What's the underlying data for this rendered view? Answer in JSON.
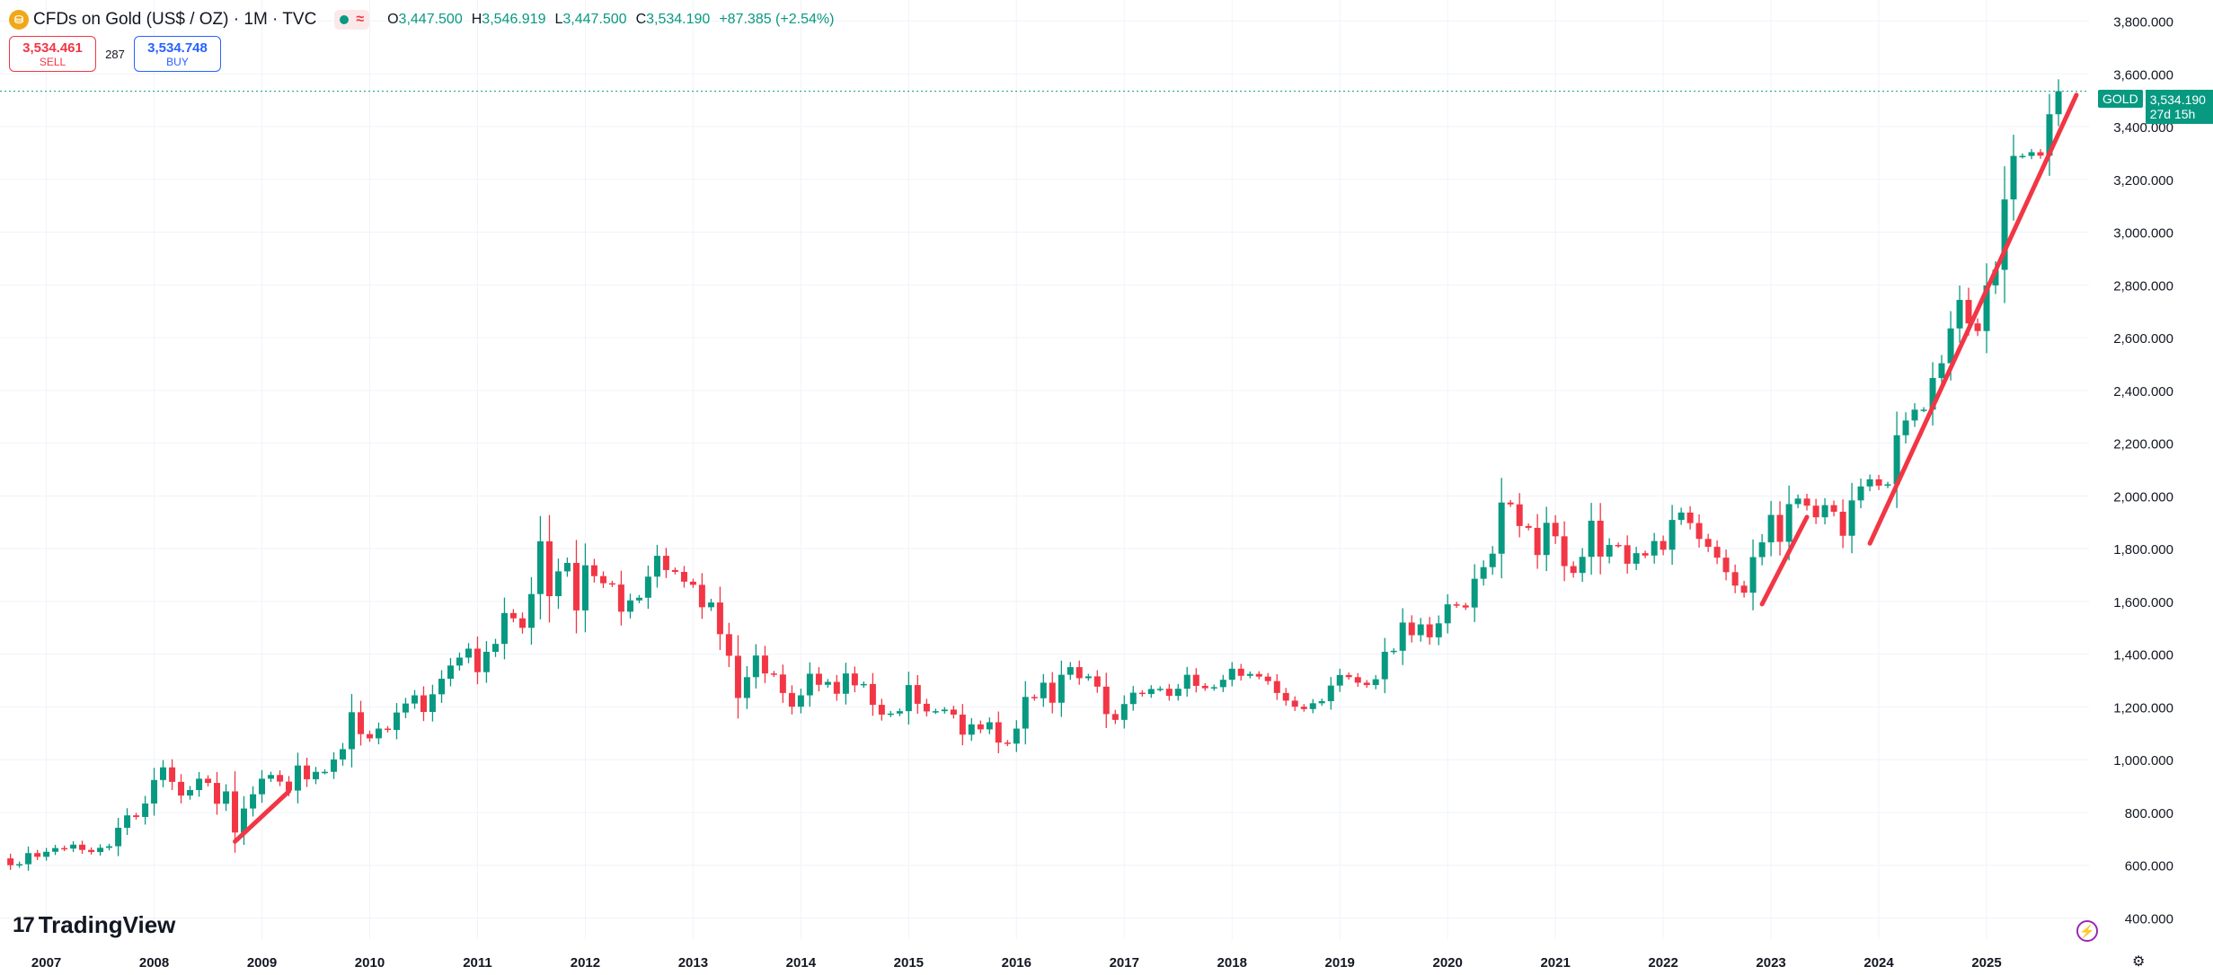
{
  "header": {
    "symbol_icon": "gold-coin-icon",
    "title": "CFDs on Gold (US$ / OZ) · 1M · TVC",
    "status_icon": "market-status-wave-icon",
    "open_key": "O",
    "open": "3,447.500",
    "high_key": "H",
    "high": "3,546.919",
    "low_key": "L",
    "low": "3,447.500",
    "close_key": "C",
    "close": "3,534.190",
    "change": "+87.385 (+2.54%)"
  },
  "trade": {
    "sell_price": "3,534.461",
    "sell_label": "SELL",
    "spread": "287",
    "buy_price": "3,534.748",
    "buy_label": "BUY"
  },
  "price_tag": {
    "symbol": "GOLD",
    "price": "3,534.190",
    "countdown": "27d 15h"
  },
  "branding": {
    "logo_text": "TradingView",
    "logo_mark": "17"
  },
  "colors": {
    "up": "#089981",
    "down": "#f23645",
    "trendline": "#f23645",
    "grid": "#f0f3fa",
    "axis_text": "#131722"
  },
  "chart_data": {
    "type": "candlestick",
    "title": "CFDs on Gold (US$ / OZ)",
    "interval": "1M",
    "source": "TVC",
    "x_ticks": [
      "2007",
      "2008",
      "2009",
      "2010",
      "2011",
      "2012",
      "2013",
      "2014",
      "2015",
      "2016",
      "2017",
      "2018",
      "2019",
      "2020",
      "2021",
      "2022",
      "2023",
      "2024",
      "2025"
    ],
    "y_ticks": [
      "400.000",
      "600.000",
      "800.000",
      "1,000.000",
      "1,200.000",
      "1,400.000",
      "1,600.000",
      "1,800.000",
      "2,000.000",
      "2,200.000",
      "2,400.000",
      "2,600.000",
      "2,800.000",
      "3,000.000",
      "3,200.000",
      "3,400.000",
      "3,600.000",
      "3,800.000"
    ],
    "ylim": [
      320,
      3880
    ],
    "xlim": [
      2006.57,
      2025.95
    ],
    "last_price": 3534.19,
    "closes": [
      [
        2006.583,
        626
      ],
      [
        2006.667,
        600
      ],
      [
        2006.75,
        604
      ],
      [
        2006.833,
        646
      ],
      [
        2006.917,
        632
      ],
      [
        2007.0,
        651
      ],
      [
        2007.083,
        665
      ],
      [
        2007.167,
        663
      ],
      [
        2007.25,
        678
      ],
      [
        2007.333,
        658
      ],
      [
        2007.417,
        650
      ],
      [
        2007.5,
        666
      ],
      [
        2007.583,
        672
      ],
      [
        2007.667,
        742
      ],
      [
        2007.75,
        789
      ],
      [
        2007.833,
        783
      ],
      [
        2007.917,
        834
      ],
      [
        2008.0,
        923
      ],
      [
        2008.083,
        971
      ],
      [
        2008.167,
        916
      ],
      [
        2008.25,
        864
      ],
      [
        2008.333,
        885
      ],
      [
        2008.417,
        928
      ],
      [
        2008.5,
        912
      ],
      [
        2008.583,
        833
      ],
      [
        2008.667,
        880
      ],
      [
        2008.75,
        724
      ],
      [
        2008.833,
        815
      ],
      [
        2008.917,
        869
      ],
      [
        2009.0,
        928
      ],
      [
        2009.083,
        942
      ],
      [
        2009.167,
        917
      ],
      [
        2009.25,
        883
      ],
      [
        2009.333,
        978
      ],
      [
        2009.417,
        926
      ],
      [
        2009.5,
        954
      ],
      [
        2009.583,
        954
      ],
      [
        2009.667,
        1001
      ],
      [
        2009.75,
        1040
      ],
      [
        2009.833,
        1180
      ],
      [
        2009.917,
        1097
      ],
      [
        2010.0,
        1081
      ],
      [
        2010.083,
        1118
      ],
      [
        2010.167,
        1113
      ],
      [
        2010.25,
        1179
      ],
      [
        2010.333,
        1213
      ],
      [
        2010.417,
        1244
      ],
      [
        2010.5,
        1181
      ],
      [
        2010.583,
        1248
      ],
      [
        2010.667,
        1307
      ],
      [
        2010.75,
        1357
      ],
      [
        2010.833,
        1387
      ],
      [
        2010.917,
        1421
      ],
      [
        2011.0,
        1332
      ],
      [
        2011.083,
        1409
      ],
      [
        2011.167,
        1439
      ],
      [
        2011.25,
        1556
      ],
      [
        2011.333,
        1536
      ],
      [
        2011.417,
        1500
      ],
      [
        2011.5,
        1628
      ],
      [
        2011.583,
        1828
      ],
      [
        2011.667,
        1620
      ],
      [
        2011.75,
        1714
      ],
      [
        2011.833,
        1746
      ],
      [
        2011.917,
        1566
      ],
      [
        2012.0,
        1737
      ],
      [
        2012.083,
        1696
      ],
      [
        2012.167,
        1669
      ],
      [
        2012.25,
        1664
      ],
      [
        2012.333,
        1561
      ],
      [
        2012.417,
        1604
      ],
      [
        2012.5,
        1614
      ],
      [
        2012.583,
        1694
      ],
      [
        2012.667,
        1773
      ],
      [
        2012.75,
        1719
      ],
      [
        2012.833,
        1712
      ],
      [
        2012.917,
        1675
      ],
      [
        2013.0,
        1663
      ],
      [
        2013.083,
        1578
      ],
      [
        2013.167,
        1596
      ],
      [
        2013.25,
        1476
      ],
      [
        2013.333,
        1394
      ],
      [
        2013.417,
        1234
      ],
      [
        2013.5,
        1313
      ],
      [
        2013.583,
        1395
      ],
      [
        2013.667,
        1327
      ],
      [
        2013.75,
        1323
      ],
      [
        2013.833,
        1253
      ],
      [
        2013.917,
        1201
      ],
      [
        2014.0,
        1244
      ],
      [
        2014.083,
        1326
      ],
      [
        2014.167,
        1284
      ],
      [
        2014.25,
        1295
      ],
      [
        2014.333,
        1250
      ],
      [
        2014.417,
        1327
      ],
      [
        2014.5,
        1282
      ],
      [
        2014.583,
        1287
      ],
      [
        2014.667,
        1208
      ],
      [
        2014.75,
        1171
      ],
      [
        2014.833,
        1175
      ],
      [
        2014.917,
        1184
      ],
      [
        2015.0,
        1283
      ],
      [
        2015.083,
        1212
      ],
      [
        2015.167,
        1183
      ],
      [
        2015.25,
        1184
      ],
      [
        2015.333,
        1190
      ],
      [
        2015.417,
        1171
      ],
      [
        2015.5,
        1095
      ],
      [
        2015.583,
        1134
      ],
      [
        2015.667,
        1115
      ],
      [
        2015.75,
        1142
      ],
      [
        2015.833,
        1065
      ],
      [
        2015.917,
        1061
      ],
      [
        2016.0,
        1118
      ],
      [
        2016.083,
        1238
      ],
      [
        2016.167,
        1233
      ],
      [
        2016.25,
        1292
      ],
      [
        2016.333,
        1216
      ],
      [
        2016.417,
        1322
      ],
      [
        2016.5,
        1351
      ],
      [
        2016.583,
        1309
      ],
      [
        2016.667,
        1316
      ],
      [
        2016.75,
        1277
      ],
      [
        2016.833,
        1173
      ],
      [
        2016.917,
        1151
      ],
      [
        2017.0,
        1211
      ],
      [
        2017.083,
        1254
      ],
      [
        2017.167,
        1249
      ],
      [
        2017.25,
        1268
      ],
      [
        2017.333,
        1269
      ],
      [
        2017.417,
        1242
      ],
      [
        2017.5,
        1269
      ],
      [
        2017.583,
        1322
      ],
      [
        2017.667,
        1280
      ],
      [
        2017.75,
        1271
      ],
      [
        2017.833,
        1275
      ],
      [
        2017.917,
        1303
      ],
      [
        2018.0,
        1345
      ],
      [
        2018.083,
        1318
      ],
      [
        2018.167,
        1325
      ],
      [
        2018.25,
        1315
      ],
      [
        2018.333,
        1298
      ],
      [
        2018.417,
        1253
      ],
      [
        2018.5,
        1224
      ],
      [
        2018.583,
        1201
      ],
      [
        2018.667,
        1192
      ],
      [
        2018.75,
        1214
      ],
      [
        2018.833,
        1222
      ],
      [
        2018.917,
        1281
      ],
      [
        2019.0,
        1321
      ],
      [
        2019.083,
        1313
      ],
      [
        2019.167,
        1292
      ],
      [
        2019.25,
        1283
      ],
      [
        2019.333,
        1305
      ],
      [
        2019.417,
        1409
      ],
      [
        2019.5,
        1413
      ],
      [
        2019.583,
        1520
      ],
      [
        2019.667,
        1472
      ],
      [
        2019.75,
        1513
      ],
      [
        2019.833,
        1464
      ],
      [
        2019.917,
        1517
      ],
      [
        2020.0,
        1589
      ],
      [
        2020.083,
        1585
      ],
      [
        2020.167,
        1577
      ],
      [
        2020.25,
        1686
      ],
      [
        2020.333,
        1730
      ],
      [
        2020.417,
        1781
      ],
      [
        2020.5,
        1975
      ],
      [
        2020.583,
        1968
      ],
      [
        2020.667,
        1886
      ],
      [
        2020.75,
        1879
      ],
      [
        2020.833,
        1776
      ],
      [
        2020.917,
        1898
      ],
      [
        2021.0,
        1847
      ],
      [
        2021.083,
        1734
      ],
      [
        2021.167,
        1708
      ],
      [
        2021.25,
        1769
      ],
      [
        2021.333,
        1906
      ],
      [
        2021.417,
        1770
      ],
      [
        2021.5,
        1814
      ],
      [
        2021.583,
        1813
      ],
      [
        2021.667,
        1743
      ],
      [
        2021.75,
        1783
      ],
      [
        2021.833,
        1774
      ],
      [
        2021.917,
        1829
      ],
      [
        2022.0,
        1796
      ],
      [
        2022.083,
        1909
      ],
      [
        2022.167,
        1937
      ],
      [
        2022.25,
        1897
      ],
      [
        2022.333,
        1837
      ],
      [
        2022.417,
        1807
      ],
      [
        2022.5,
        1766
      ],
      [
        2022.583,
        1711
      ],
      [
        2022.667,
        1660
      ],
      [
        2022.75,
        1633
      ],
      [
        2022.833,
        1768
      ],
      [
        2022.917,
        1824
      ],
      [
        2023.0,
        1928
      ],
      [
        2023.083,
        1826
      ],
      [
        2023.167,
        1969
      ],
      [
        2023.25,
        1990
      ],
      [
        2023.333,
        1963
      ],
      [
        2023.417,
        1919
      ],
      [
        2023.5,
        1965
      ],
      [
        2023.583,
        1940
      ],
      [
        2023.667,
        1849
      ],
      [
        2023.75,
        1983
      ],
      [
        2023.833,
        2036
      ],
      [
        2023.917,
        2063
      ],
      [
        2024.0,
        2039
      ],
      [
        2024.083,
        2044
      ],
      [
        2024.167,
        2230
      ],
      [
        2024.25,
        2286
      ],
      [
        2024.333,
        2327
      ],
      [
        2024.417,
        2327
      ],
      [
        2024.5,
        2447
      ],
      [
        2024.583,
        2503
      ],
      [
        2024.667,
        2635
      ],
      [
        2024.75,
        2743
      ],
      [
        2024.833,
        2654
      ],
      [
        2024.917,
        2625
      ],
      [
        2025.0,
        2798
      ],
      [
        2025.083,
        2857
      ],
      [
        2025.167,
        3124
      ],
      [
        2025.25,
        3289
      ],
      [
        2025.333,
        3289
      ],
      [
        2025.417,
        3303
      ],
      [
        2025.5,
        3290
      ],
      [
        2025.583,
        3447
      ],
      [
        2025.667,
        3534.19
      ]
    ],
    "trendlines": [
      {
        "x1": 2008.75,
        "y1": 690,
        "x2": 2009.25,
        "y2": 880
      },
      {
        "x1": 2022.917,
        "y1": 1590,
        "x2": 2023.333,
        "y2": 1920
      },
      {
        "x1": 2023.917,
        "y1": 1820,
        "x2": 2025.833,
        "y2": 3520
      }
    ]
  }
}
